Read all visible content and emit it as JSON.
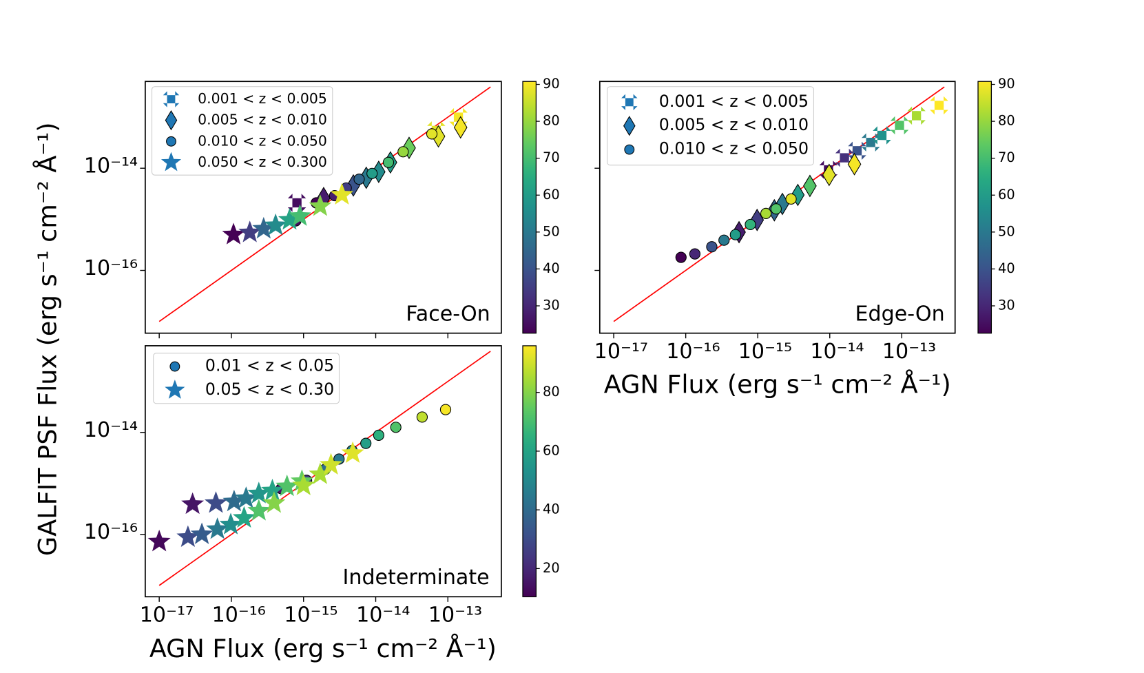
{
  "chart_data": [
    {
      "type": "scatter",
      "xscale": "log",
      "yscale": "log",
      "ylabel": "GALFIT PSF Flux (erg s⁻¹ cm⁻² Å⁻¹)",
      "annotation": "Face-On",
      "xlim": [
        6.4e-18,
        5.5e-13
      ],
      "ylim": [
        5.9e-18,
        5e-13
      ],
      "xticks": [
        {
          "value": 1e-17
        },
        {
          "value": 1e-16
        },
        {
          "value": 1e-15
        },
        {
          "value": 1e-14
        },
        {
          "value": 1e-13
        }
      ],
      "yticks": [
        {
          "value": 1e-14,
          "label": "10⁻¹⁴"
        },
        {
          "value": 1e-16,
          "label": "10⁻¹⁶"
        }
      ],
      "legend": "upper left",
      "reference_line": {
        "x": [
          1e-17,
          3.9e-13
        ],
        "y": [
          1e-17,
          3.9e-13
        ],
        "color": "#ff0000"
      },
      "colorbar": {
        "cmap": "viridis",
        "clim": [
          22.6,
          90.8
        ],
        "ticks": [
          30,
          40,
          50,
          60,
          70,
          80,
          90
        ]
      },
      "series": [
        {
          "name": "0.001 < z < 0.005",
          "marker": "X",
          "color": "#1f77b4",
          "edgecolor": null,
          "x": [
            8.1e-16,
            6.9e-14,
            1.4e-13
          ],
          "y": [
            2.1e-15,
            5.5e-14,
            1e-13
          ],
          "c": [
            25,
            88,
            90
          ]
        },
        {
          "name": "0.005 < z < 0.010",
          "marker": "d",
          "color": "#1f77b4",
          "edgecolor": "#000000",
          "x": [
            1.9e-15,
            4.9e-15,
            7.4e-15,
            1.1e-14,
            1.6e-14,
            2.9e-14,
            7.4e-14,
            1.5e-13
          ],
          "y": [
            2.6e-15,
            4.6e-15,
            6.5e-15,
            8.5e-15,
            1.3e-14,
            2.5e-14,
            4.2e-14,
            6.3e-14
          ],
          "c": [
            28,
            40,
            50,
            55,
            60,
            75,
            88,
            90
          ]
        },
        {
          "name": "0.010 < z < 0.050",
          "marker": "o",
          "color": "#1f77b4",
          "edgecolor": "#000000",
          "x": [
            1.5e-15,
            2.7e-15,
            3.9e-15,
            5.9e-15,
            8.9e-15,
            1.5e-14,
            2.4e-14,
            6e-14,
            7.8e-16
          ],
          "y": [
            2.1e-15,
            2.9e-15,
            4.1e-15,
            6.1e-15,
            7.9e-15,
            1.3e-14,
            2.1e-14,
            4.7e-14,
            9.3e-16
          ],
          "c": [
            22,
            28,
            35,
            45,
            60,
            70,
            80,
            88,
            25
          ]
        },
        {
          "name": "0.050 < z < 0.300",
          "marker": "*",
          "color": "#1f77b4",
          "edgecolor": null,
          "x": [
            1.07e-16,
            1.8e-16,
            2.8e-16,
            4.1e-16,
            6.4e-16,
            8.9e-16,
            1.7e-15,
            3.4e-15
          ],
          "y": [
            5e-16,
            5.5e-16,
            6.5e-16,
            7.6e-16,
            9.7e-16,
            1.15e-15,
            1.8e-15,
            3e-15
          ],
          "c": [
            22,
            35,
            45,
            55,
            62,
            70,
            78,
            88
          ]
        }
      ]
    },
    {
      "type": "scatter",
      "xscale": "log",
      "yscale": "log",
      "xlabel": "AGN Flux (erg s⁻¹ cm⁻² Å⁻¹)",
      "annotation": "Edge-On",
      "xlim": [
        6.4e-18,
        5.5e-13
      ],
      "ylim": [
        5.9e-18,
        5e-13
      ],
      "xticks": [
        {
          "value": 1e-17,
          "label": "10⁻¹⁷"
        },
        {
          "value": 1e-16,
          "label": "10⁻¹⁶"
        },
        {
          "value": 1e-15,
          "label": "10⁻¹⁵"
        },
        {
          "value": 1e-14,
          "label": "10⁻¹⁴"
        },
        {
          "value": 1e-13,
          "label": "10⁻¹³"
        }
      ],
      "yticks": [
        {
          "value": 1e-14
        },
        {
          "value": 1e-16
        }
      ],
      "legend": "upper left",
      "reference_line": {
        "x": [
          1e-17,
          3.9e-13
        ],
        "y": [
          1e-17,
          3.9e-13
        ],
        "color": "#ff0000"
      },
      "colorbar": {
        "cmap": "viridis",
        "clim": [
          22.6,
          90.8
        ],
        "ticks": [
          30,
          40,
          50,
          60,
          70,
          80,
          90
        ]
      },
      "series": [
        {
          "name": "0.001 < z < 0.005",
          "marker": "X",
          "color": "#1f77b4",
          "edgecolor": null,
          "x": [
            9.6e-15,
            1.6e-14,
            2.4e-14,
            3.7e-14,
            5.3e-14,
            9.3e-14,
            1.6e-13,
            3.3e-13
          ],
          "y": [
            9.3e-15,
            1.6e-14,
            2.2e-14,
            3.2e-14,
            4.4e-14,
            6.9e-14,
            1.07e-13,
            1.7e-13
          ],
          "c": [
            25,
            32,
            40,
            50,
            57,
            72,
            82,
            92
          ]
        },
        {
          "name": "0.005 < z < 0.010",
          "marker": "d",
          "color": "#1f77b4",
          "edgecolor": "#000000",
          "x": [
            5.5e-16,
            9.8e-16,
            1.7e-15,
            2.2e-15,
            3.6e-15,
            5.3e-15,
            9.8e-15,
            2.2e-14
          ],
          "y": [
            5.6e-16,
            9.7e-16,
            1.5e-15,
            2e-15,
            3e-15,
            4.5e-15,
            7.4e-15,
            1.2e-14
          ],
          "c": [
            28,
            35,
            45,
            50,
            60,
            72,
            88,
            90
          ]
        },
        {
          "name": "0.010 < z < 0.050",
          "marker": "o",
          "color": "#1f77b4",
          "edgecolor": "#000000",
          "x": [
            8.6e-17,
            1.34e-16,
            2.3e-16,
            3.4e-16,
            4.9e-16,
            7.9e-16,
            1.3e-15,
            1.8e-15,
            2.9e-15
          ],
          "y": [
            1.8e-16,
            2.1e-16,
            2.9e-16,
            3.9e-16,
            5e-16,
            7.9e-16,
            1.3e-15,
            1.6e-15,
            2.5e-15
          ],
          "c": [
            22,
            30,
            40,
            50,
            60,
            67,
            82,
            72,
            88
          ]
        }
      ]
    },
    {
      "type": "scatter",
      "xscale": "log",
      "yscale": "log",
      "xlabel": "AGN Flux (erg s⁻¹ cm⁻² Å⁻¹)",
      "annotation": "Indeterminate",
      "xlim": [
        6.4e-18,
        5.5e-13
      ],
      "ylim": [
        6e-18,
        5e-13
      ],
      "xticks": [
        {
          "value": 1e-17,
          "label": "10⁻¹⁷"
        },
        {
          "value": 1e-16,
          "label": "10⁻¹⁶"
        },
        {
          "value": 1e-15,
          "label": "10⁻¹⁵"
        },
        {
          "value": 1e-14,
          "label": "10⁻¹⁴"
        },
        {
          "value": 1e-13,
          "label": "10⁻¹³"
        }
      ],
      "yticks": [
        {
          "value": 1e-14,
          "label": "10⁻¹⁴"
        },
        {
          "value": 1e-16,
          "label": "10⁻¹⁶"
        }
      ],
      "legend": "upper left",
      "reference_line": {
        "x": [
          1e-17,
          3.9e-13
        ],
        "y": [
          1e-17,
          3.9e-13
        ],
        "color": "#ff0000"
      },
      "colorbar": {
        "cmap": "viridis",
        "clim": [
          10.4,
          95.9
        ],
        "ticks": [
          20,
          40,
          60,
          80
        ]
      },
      "series": [
        {
          "name": "0.01 < z < 0.05",
          "marker": "o",
          "color": "#1f77b4",
          "edgecolor": "#000000",
          "x": [
            4.9e-16,
            1.1e-15,
            2e-15,
            3.1e-15,
            4.7e-15,
            7.3e-15,
            1.1e-14,
            1.9e-14,
            4.4e-14,
            9.3e-14
          ],
          "y": [
            7.9e-16,
            1.15e-15,
            1.9e-15,
            3e-15,
            4.4e-15,
            6.1e-15,
            8.8e-15,
            1.26e-14,
            2e-14,
            2.8e-14
          ],
          "c": [
            15,
            25,
            40,
            45,
            50,
            58,
            65,
            72,
            88,
            95
          ]
        },
        {
          "name": "0.05 < z < 0.30",
          "marker": "*",
          "color": "#1f77b4",
          "edgecolor": null,
          "x": [
            1e-17,
            2.5e-17,
            3.9e-17,
            2.9e-17,
            6.1e-17,
            1.09e-16,
            1.6e-16,
            2.4e-16,
            3.7e-16,
            6.4e-17,
            9.8e-17,
            1.5e-16,
            2.4e-16,
            3.9e-16,
            5.9e-16,
            9.5e-16,
            1e-15,
            1.7e-15,
            2.4e-15,
            4.8e-15
          ],
          "y": [
            7.2e-17,
            8.8e-17,
            1e-16,
            3.9e-16,
            4.1e-16,
            4.4e-16,
            5.1e-16,
            6.3e-16,
            7.2e-16,
            1.26e-16,
            1.55e-16,
            2.1e-16,
            2.9e-16,
            4.1e-16,
            8.7e-16,
            1.1e-15,
            9.1e-16,
            1.5e-15,
            2.3e-15,
            3.9e-15
          ],
          "c": [
            12,
            30,
            35,
            15,
            30,
            40,
            45,
            55,
            60,
            45,
            52,
            60,
            72,
            80,
            72,
            75,
            85,
            85,
            90,
            92
          ]
        }
      ]
    }
  ]
}
